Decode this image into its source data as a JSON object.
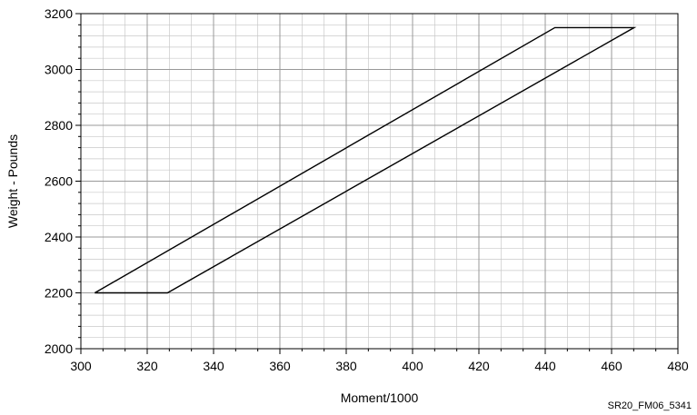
{
  "chart_data": {
    "type": "line",
    "title": "",
    "xlabel": "Moment/1000",
    "ylabel": "Weight - Pounds",
    "xlim": [
      300,
      480
    ],
    "ylim": [
      2000,
      3200
    ],
    "x_ticks": [
      300,
      320,
      340,
      360,
      380,
      400,
      420,
      440,
      460,
      480
    ],
    "y_ticks": [
      2000,
      2200,
      2400,
      2600,
      2800,
      3000,
      3200
    ],
    "x_minor_step": 6.667,
    "y_minor_step": 40,
    "grid": true,
    "series": [
      {
        "x": [
          304.2,
          326.1,
          466.8,
          442.9,
          304.2
        ],
        "y": [
          2200,
          2200,
          3150,
          3150,
          2200
        ]
      }
    ]
  },
  "figure_id": "SR20_FM06_5341",
  "colors": {
    "grid": "#999999",
    "line": "#000000",
    "axis": "#000000"
  }
}
